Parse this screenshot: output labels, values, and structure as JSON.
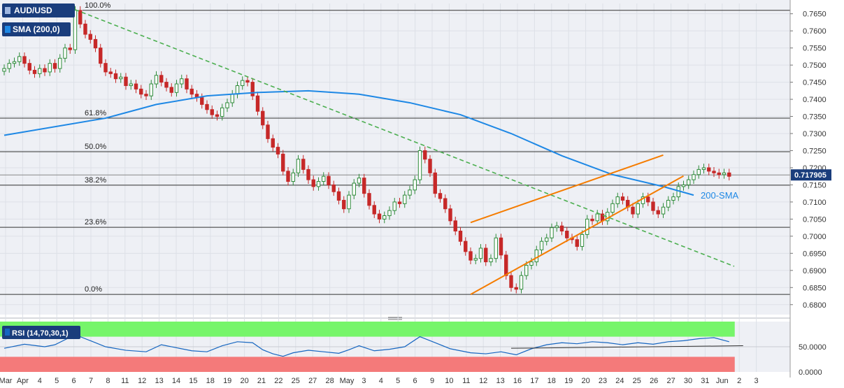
{
  "colors": {
    "candle_up": "#2e8b3a",
    "candle_down": "#c62828",
    "sma": "#1e88e5",
    "trend_dashed": "#4caf50",
    "channel": "#f57c00",
    "rsi_line": "#1565c0",
    "rsi_overbought": "#76f56a",
    "rsi_oversold": "#f47a7a",
    "price_tag": "#1a3d7c",
    "panel_bg": "#eef0f5"
  },
  "header": {
    "symbol": "AUD/USD",
    "indicator": "SMA (200,0)",
    "rsi_label": "RSI (14,70,30,1)"
  },
  "chart_data": [
    {
      "type": "candlestick",
      "title": "",
      "ylim": [
        0.6775,
        0.768
      ],
      "y_ticks": [
        "0.7650",
        "0.7600",
        "0.7550",
        "0.7500",
        "0.7450",
        "0.7400",
        "0.7350",
        "0.7300",
        "0.7250",
        "0.7200",
        "0.7150",
        "0.7100",
        "0.7050",
        "0.7000",
        "0.6950",
        "0.6900",
        "0.6850",
        "0.6800"
      ],
      "x_ticks": [
        "Mar",
        "Apr",
        "4",
        "5",
        "6",
        "7",
        "8",
        "11",
        "12",
        "13",
        "14",
        "15",
        "18",
        "19",
        "20",
        "21",
        "22",
        "25",
        "27",
        "28",
        "May",
        "3",
        "4",
        "5",
        "6",
        "9",
        "10",
        "11",
        "12",
        "13",
        "16",
        "17",
        "18",
        "19",
        "20",
        "23",
        "24",
        "25",
        "26",
        "27",
        "30",
        "31",
        "Jun",
        "2",
        "3"
      ],
      "last_price": "0.717905",
      "fibonacci": [
        {
          "label": "100.0%",
          "value": 0.766
        },
        {
          "label": "61.8%",
          "value": 0.7345
        },
        {
          "label": "50.0%",
          "value": 0.7247
        },
        {
          "label": "38.2%",
          "value": 0.7149
        },
        {
          "label": "23.6%",
          "value": 0.7026
        },
        {
          "label": "0.0%",
          "value": 0.683
        }
      ],
      "annotations": [
        {
          "text": "200-SMA"
        }
      ],
      "sma200": [
        {
          "t": 0,
          "v": 0.7295
        },
        {
          "t": 20,
          "v": 0.7345
        },
        {
          "t": 30,
          "v": 0.7385
        },
        {
          "t": 40,
          "v": 0.741
        },
        {
          "t": 50,
          "v": 0.742
        },
        {
          "t": 60,
          "v": 0.7425
        },
        {
          "t": 70,
          "v": 0.7415
        },
        {
          "t": 80,
          "v": 0.739
        },
        {
          "t": 90,
          "v": 0.7355
        },
        {
          "t": 100,
          "v": 0.73
        },
        {
          "t": 110,
          "v": 0.7235
        },
        {
          "t": 120,
          "v": 0.718
        },
        {
          "t": 130,
          "v": 0.7145
        },
        {
          "t": 136,
          "v": 0.712
        }
      ],
      "trend_dashed": {
        "from": {
          "t": 14,
          "v": 0.7662
        },
        "to": {
          "t": 144,
          "v": 0.6912
        }
      },
      "channel_upper": {
        "from": {
          "t": 92,
          "v": 0.704
        },
        "to": {
          "t": 130,
          "v": 0.7237
        }
      },
      "channel_lower": {
        "from": {
          "t": 92,
          "v": 0.683
        },
        "to": {
          "t": 134,
          "v": 0.7176
        }
      },
      "candles": [
        {
          "t": 0,
          "v": 0.749
        },
        {
          "t": 1,
          "v": 0.7505
        },
        {
          "t": 2,
          "v": 0.751
        },
        {
          "t": 3,
          "v": 0.7525
        },
        {
          "t": 4,
          "v": 0.7505
        },
        {
          "t": 5,
          "v": 0.7485
        },
        {
          "t": 6,
          "v": 0.7475
        },
        {
          "t": 7,
          "v": 0.749
        },
        {
          "t": 8,
          "v": 0.748
        },
        {
          "t": 9,
          "v": 0.7505
        },
        {
          "t": 10,
          "v": 0.749
        },
        {
          "t": 11,
          "v": 0.752
        },
        {
          "t": 12,
          "v": 0.755
        },
        {
          "t": 13,
          "v": 0.7545
        },
        {
          "t": 14,
          "v": 0.766
        },
        {
          "t": 15,
          "v": 0.762
        },
        {
          "t": 16,
          "v": 0.759
        },
        {
          "t": 17,
          "v": 0.7575
        },
        {
          "t": 18,
          "v": 0.755
        },
        {
          "t": 19,
          "v": 0.7505
        },
        {
          "t": 20,
          "v": 0.748
        },
        {
          "t": 21,
          "v": 0.7475
        },
        {
          "t": 22,
          "v": 0.746
        },
        {
          "t": 23,
          "v": 0.7465
        },
        {
          "t": 24,
          "v": 0.744
        },
        {
          "t": 25,
          "v": 0.7445
        },
        {
          "t": 26,
          "v": 0.743
        },
        {
          "t": 27,
          "v": 0.7415
        },
        {
          "t": 28,
          "v": 0.741
        },
        {
          "t": 29,
          "v": 0.7445
        },
        {
          "t": 30,
          "v": 0.747
        },
        {
          "t": 31,
          "v": 0.745
        },
        {
          "t": 32,
          "v": 0.7435
        },
        {
          "t": 33,
          "v": 0.742
        },
        {
          "t": 34,
          "v": 0.7445
        },
        {
          "t": 35,
          "v": 0.746
        },
        {
          "t": 36,
          "v": 0.743
        },
        {
          "t": 37,
          "v": 0.7415
        },
        {
          "t": 38,
          "v": 0.7405
        },
        {
          "t": 39,
          "v": 0.7385
        },
        {
          "t": 40,
          "v": 0.737
        },
        {
          "t": 41,
          "v": 0.7355
        },
        {
          "t": 42,
          "v": 0.735
        },
        {
          "t": 43,
          "v": 0.7375
        },
        {
          "t": 44,
          "v": 0.739
        },
        {
          "t": 45,
          "v": 0.7415
        },
        {
          "t": 46,
          "v": 0.744
        },
        {
          "t": 47,
          "v": 0.7455
        },
        {
          "t": 48,
          "v": 0.745
        },
        {
          "t": 49,
          "v": 0.741
        },
        {
          "t": 50,
          "v": 0.7365
        },
        {
          "t": 51,
          "v": 0.7325
        },
        {
          "t": 52,
          "v": 0.7285
        },
        {
          "t": 53,
          "v": 0.726
        },
        {
          "t": 54,
          "v": 0.724
        },
        {
          "t": 55,
          "v": 0.719
        },
        {
          "t": 56,
          "v": 0.716
        },
        {
          "t": 57,
          "v": 0.7185
        },
        {
          "t": 58,
          "v": 0.7225
        },
        {
          "t": 59,
          "v": 0.7195
        },
        {
          "t": 60,
          "v": 0.7165
        },
        {
          "t": 61,
          "v": 0.7145
        },
        {
          "t": 62,
          "v": 0.716
        },
        {
          "t": 63,
          "v": 0.7175
        },
        {
          "t": 64,
          "v": 0.715
        },
        {
          "t": 65,
          "v": 0.713
        },
        {
          "t": 66,
          "v": 0.7105
        },
        {
          "t": 67,
          "v": 0.708
        },
        {
          "t": 68,
          "v": 0.712
        },
        {
          "t": 69,
          "v": 0.7155
        },
        {
          "t": 70,
          "v": 0.717
        },
        {
          "t": 71,
          "v": 0.7125
        },
        {
          "t": 72,
          "v": 0.709
        },
        {
          "t": 73,
          "v": 0.7065
        },
        {
          "t": 74,
          "v": 0.705
        },
        {
          "t": 75,
          "v": 0.706
        },
        {
          "t": 76,
          "v": 0.7075
        },
        {
          "t": 77,
          "v": 0.71
        },
        {
          "t": 78,
          "v": 0.7095
        },
        {
          "t": 79,
          "v": 0.712
        },
        {
          "t": 80,
          "v": 0.7135
        },
        {
          "t": 81,
          "v": 0.7165
        },
        {
          "t": 82,
          "v": 0.725
        },
        {
          "t": 83,
          "v": 0.7225
        },
        {
          "t": 84,
          "v": 0.7185
        },
        {
          "t": 85,
          "v": 0.7125
        },
        {
          "t": 86,
          "v": 0.711
        },
        {
          "t": 87,
          "v": 0.708
        },
        {
          "t": 88,
          "v": 0.7045
        },
        {
          "t": 89,
          "v": 0.7015
        },
        {
          "t": 90,
          "v": 0.6985
        },
        {
          "t": 91,
          "v": 0.6955
        },
        {
          "t": 92,
          "v": 0.693
        },
        {
          "t": 93,
          "v": 0.6935
        },
        {
          "t": 94,
          "v": 0.6965
        },
        {
          "t": 95,
          "v": 0.6925
        },
        {
          "t": 96,
          "v": 0.6935
        },
        {
          "t": 97,
          "v": 0.6995
        },
        {
          "t": 98,
          "v": 0.6945
        },
        {
          "t": 99,
          "v": 0.6885
        },
        {
          "t": 100,
          "v": 0.685
        },
        {
          "t": 101,
          "v": 0.6845
        },
        {
          "t": 102,
          "v": 0.6885
        },
        {
          "t": 103,
          "v": 0.6915
        },
        {
          "t": 104,
          "v": 0.6925
        },
        {
          "t": 105,
          "v": 0.696
        },
        {
          "t": 106,
          "v": 0.6985
        },
        {
          "t": 107,
          "v": 0.6995
        },
        {
          "t": 108,
          "v": 0.7025
        },
        {
          "t": 109,
          "v": 0.703
        },
        {
          "t": 110,
          "v": 0.7015
        },
        {
          "t": 111,
          "v": 0.6995
        },
        {
          "t": 112,
          "v": 0.699
        },
        {
          "t": 113,
          "v": 0.697
        },
        {
          "t": 114,
          "v": 0.7005
        },
        {
          "t": 115,
          "v": 0.705
        },
        {
          "t": 116,
          "v": 0.7045
        },
        {
          "t": 117,
          "v": 0.7065
        },
        {
          "t": 118,
          "v": 0.7045
        },
        {
          "t": 119,
          "v": 0.707
        },
        {
          "t": 120,
          "v": 0.7095
        },
        {
          "t": 121,
          "v": 0.7115
        },
        {
          "t": 122,
          "v": 0.7105
        },
        {
          "t": 123,
          "v": 0.7085
        },
        {
          "t": 124,
          "v": 0.7065
        },
        {
          "t": 125,
          "v": 0.7095
        },
        {
          "t": 126,
          "v": 0.7115
        },
        {
          "t": 127,
          "v": 0.71
        },
        {
          "t": 128,
          "v": 0.7075
        },
        {
          "t": 129,
          "v": 0.7065
        },
        {
          "t": 130,
          "v": 0.7085
        },
        {
          "t": 131,
          "v": 0.7105
        },
        {
          "t": 132,
          "v": 0.7115
        },
        {
          "t": 133,
          "v": 0.7145
        },
        {
          "t": 134,
          "v": 0.715
        },
        {
          "t": 135,
          "v": 0.7165
        },
        {
          "t": 136,
          "v": 0.718
        },
        {
          "t": 137,
          "v": 0.7195
        },
        {
          "t": 138,
          "v": 0.72
        },
        {
          "t": 139,
          "v": 0.719
        },
        {
          "t": 140,
          "v": 0.7185
        },
        {
          "t": 141,
          "v": 0.718
        },
        {
          "t": 142,
          "v": 0.7185
        },
        {
          "t": 143,
          "v": 0.7175
        }
      ]
    },
    {
      "type": "line",
      "title": "",
      "ylim": [
        0,
        100
      ],
      "y_ticks": [
        "50.0000",
        "0.0000"
      ],
      "overbought": 70,
      "oversold": 30,
      "trendline": {
        "from": {
          "t": 100,
          "v": 47
        },
        "to": {
          "t": 143,
          "v": 52
        }
      },
      "values": [
        {
          "t": 0,
          "v": 47
        },
        {
          "t": 4,
          "v": 55
        },
        {
          "t": 8,
          "v": 50
        },
        {
          "t": 10,
          "v": 54
        },
        {
          "t": 14,
          "v": 74
        },
        {
          "t": 17,
          "v": 62
        },
        {
          "t": 20,
          "v": 50
        },
        {
          "t": 24,
          "v": 43
        },
        {
          "t": 28,
          "v": 40
        },
        {
          "t": 31,
          "v": 54
        },
        {
          "t": 34,
          "v": 48
        },
        {
          "t": 37,
          "v": 42
        },
        {
          "t": 40,
          "v": 40
        },
        {
          "t": 43,
          "v": 52
        },
        {
          "t": 46,
          "v": 60
        },
        {
          "t": 49,
          "v": 58
        },
        {
          "t": 51,
          "v": 44
        },
        {
          "t": 53,
          "v": 36
        },
        {
          "t": 55,
          "v": 31
        },
        {
          "t": 57,
          "v": 38
        },
        {
          "t": 60,
          "v": 43
        },
        {
          "t": 63,
          "v": 40
        },
        {
          "t": 66,
          "v": 37
        },
        {
          "t": 68,
          "v": 44
        },
        {
          "t": 70,
          "v": 52
        },
        {
          "t": 73,
          "v": 42
        },
        {
          "t": 76,
          "v": 45
        },
        {
          "t": 79,
          "v": 50
        },
        {
          "t": 82,
          "v": 70
        },
        {
          "t": 85,
          "v": 58
        },
        {
          "t": 88,
          "v": 46
        },
        {
          "t": 92,
          "v": 38
        },
        {
          "t": 95,
          "v": 36
        },
        {
          "t": 98,
          "v": 40
        },
        {
          "t": 101,
          "v": 34
        },
        {
          "t": 104,
          "v": 46
        },
        {
          "t": 107,
          "v": 54
        },
        {
          "t": 110,
          "v": 58
        },
        {
          "t": 113,
          "v": 56
        },
        {
          "t": 116,
          "v": 60
        },
        {
          "t": 119,
          "v": 58
        },
        {
          "t": 122,
          "v": 54
        },
        {
          "t": 125,
          "v": 58
        },
        {
          "t": 128,
          "v": 55
        },
        {
          "t": 131,
          "v": 60
        },
        {
          "t": 134,
          "v": 62
        },
        {
          "t": 137,
          "v": 66
        },
        {
          "t": 140,
          "v": 68
        },
        {
          "t": 143,
          "v": 60
        }
      ]
    }
  ]
}
